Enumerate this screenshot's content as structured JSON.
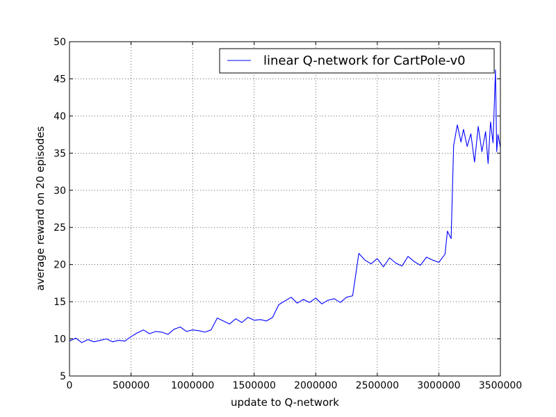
{
  "chart_data": {
    "type": "line",
    "xlabel": "update to Q-network",
    "ylabel": "average reward on 20 episodes",
    "xlim": [
      0,
      3500000
    ],
    "ylim": [
      5,
      50
    ],
    "xticks": [
      0,
      500000,
      1000000,
      1500000,
      2000000,
      2500000,
      3000000,
      3500000
    ],
    "yticks": [
      5,
      10,
      15,
      20,
      25,
      30,
      35,
      40,
      45,
      50
    ],
    "xtick_labels": [
      "0",
      "500000",
      "1000000",
      "1500000",
      "2000000",
      "2500000",
      "3000000",
      "3500000"
    ],
    "ytick_labels": [
      "5",
      "10",
      "15",
      "20",
      "25",
      "30",
      "35",
      "40",
      "45",
      "50"
    ],
    "grid": true,
    "legend_position": "top-right",
    "series": [
      {
        "name": "linear Q-network for CartPole-v0",
        "color": "#0000ff",
        "x": [
          0,
          50000,
          100000,
          150000,
          200000,
          250000,
          300000,
          350000,
          400000,
          450000,
          500000,
          550000,
          600000,
          650000,
          700000,
          750000,
          800000,
          850000,
          900000,
          950000,
          1000000,
          1050000,
          1100000,
          1150000,
          1200000,
          1250000,
          1300000,
          1350000,
          1400000,
          1450000,
          1500000,
          1550000,
          1600000,
          1650000,
          1700000,
          1750000,
          1800000,
          1850000,
          1900000,
          1950000,
          2000000,
          2050000,
          2100000,
          2150000,
          2200000,
          2250000,
          2300000,
          2350000,
          2400000,
          2450000,
          2500000,
          2550000,
          2600000,
          2650000,
          2700000,
          2750000,
          2800000,
          2850000,
          2900000,
          2950000,
          3000000,
          3050000,
          3070000,
          3100000,
          3120000,
          3150000,
          3180000,
          3200000,
          3230000,
          3260000,
          3290000,
          3320000,
          3350000,
          3380000,
          3400000,
          3420000,
          3440000,
          3460000,
          3470000,
          3480000,
          3500000
        ],
        "y": [
          9.7,
          10.1,
          9.5,
          9.9,
          9.6,
          9.8,
          10.0,
          9.6,
          9.8,
          9.7,
          10.3,
          10.8,
          11.2,
          10.7,
          11.0,
          10.9,
          10.6,
          11.3,
          11.6,
          11.0,
          11.2,
          11.1,
          10.9,
          11.2,
          12.8,
          12.4,
          12.0,
          12.7,
          12.2,
          12.9,
          12.5,
          12.6,
          12.4,
          12.9,
          14.6,
          15.1,
          15.6,
          14.8,
          15.3,
          14.9,
          15.5,
          14.7,
          15.2,
          15.4,
          14.9,
          15.6,
          15.8,
          21.5,
          20.6,
          20.1,
          20.8,
          19.7,
          20.9,
          20.2,
          19.8,
          21.1,
          20.4,
          19.9,
          21.0,
          20.6,
          20.3,
          21.4,
          24.5,
          23.5,
          36.0,
          38.8,
          36.5,
          38.2,
          35.9,
          37.6,
          33.8,
          38.6,
          35.2,
          37.9,
          33.6,
          39.2,
          36.4,
          46.2,
          35.2,
          37.5,
          35.8
        ]
      }
    ]
  }
}
